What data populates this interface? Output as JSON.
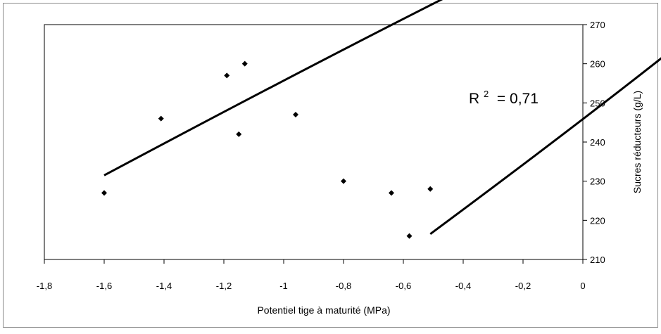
{
  "chart_data": {
    "type": "scatter",
    "xlabel": "Potentiel tige à maturité (MPa)",
    "ylabel": "Sucres réducteurs (g/L)",
    "xlim": [
      -1.8,
      0
    ],
    "ylim": [
      210,
      270
    ],
    "x_ticks": [
      -1.8,
      -1.6,
      -1.4,
      -1.2,
      -1,
      -0.8,
      -0.6,
      -0.4,
      -0.2,
      0
    ],
    "x_tick_labels": [
      "-1,8",
      "-1,6",
      "-1,4",
      "-1,2",
      "-1",
      "-0,8",
      "-0,6",
      "-0,4",
      "-0,2",
      "0"
    ],
    "y_ticks": [
      210,
      220,
      230,
      240,
      250,
      260,
      270
    ],
    "y_tick_labels": [
      "210",
      "220",
      "230",
      "240",
      "250",
      "260",
      "270"
    ],
    "y_axis_side": "right",
    "grid": false,
    "annotation": {
      "text_main": "R",
      "text_sup": "2",
      "text_value": " = 0,71"
    },
    "points": [
      {
        "x": -1.6,
        "y": 227
      },
      {
        "x": -1.41,
        "y": 246
      },
      {
        "x": -1.19,
        "y": 257
      },
      {
        "x": -1.13,
        "y": 260
      },
      {
        "x": -1.15,
        "y": 242
      },
      {
        "x": -0.96,
        "y": 247
      },
      {
        "x": -0.8,
        "y": 230
      },
      {
        "x": -0.64,
        "y": 227
      },
      {
        "x": -0.58,
        "y": 216
      },
      {
        "x": -0.51,
        "y": 228
      }
    ],
    "trendline": {
      "type": "polynomial",
      "x_start": -1.6,
      "x_end": -0.51,
      "vertex_x": -1.14,
      "vertex_y": 250.1,
      "end_left_y": 231.5,
      "end_right_y": 216.5
    }
  }
}
